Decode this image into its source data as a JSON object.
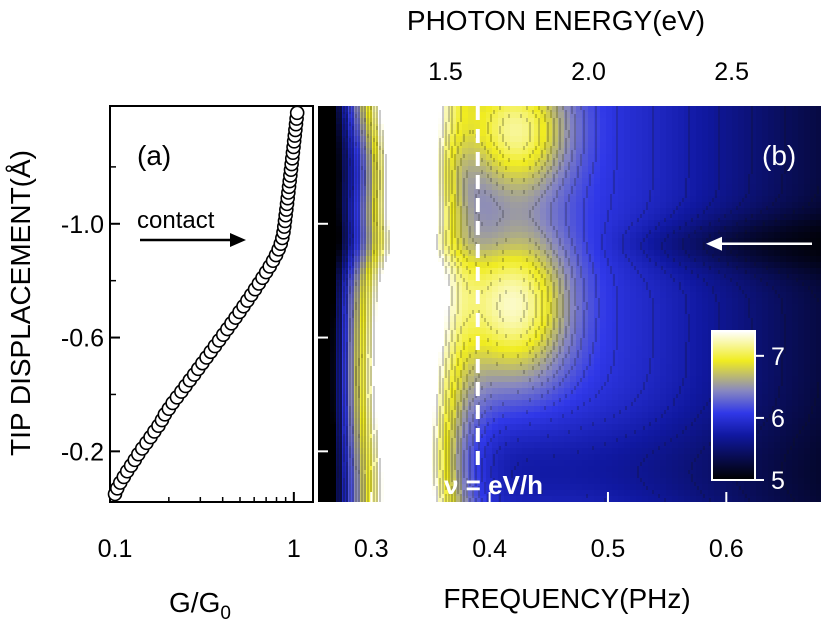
{
  "figure": {
    "top_axis_label": "PHOTON ENERGY(eV)",
    "y_axis_label": "TIP DISPLACEMENT(Å)",
    "panel_a_xlabel_main": "G/G",
    "panel_a_xlabel_sub": "0",
    "panel_b_xlabel": "FREQUENCY(PHz)",
    "panel_a_tag": "(a)",
    "panel_b_tag": "(b)",
    "contact_label": "contact",
    "dashed_line_label": "ν = eV/h",
    "colors": {
      "yellow": "#f2ee20",
      "blue": "#2b2fe6",
      "black": "#000000",
      "white": "#ffffff"
    }
  },
  "chart_data": [
    {
      "panel": "a",
      "type": "scatter",
      "title": "",
      "xlabel": "G/G0",
      "ylabel": "TIP DISPLACEMENT(Å)",
      "xscale": "log",
      "xlim": [
        0.1,
        1.2
      ],
      "ylim": [
        -0.05,
        -1.4
      ],
      "xticks": [
        0.1,
        1
      ],
      "xtick_labels": [
        "0.1",
        "1"
      ],
      "yticks": [
        -0.2,
        -0.6,
        -1.0
      ],
      "ytick_labels": [
        "-0.2",
        "-0.6",
        "-1.0"
      ],
      "points": [
        [
          0.1,
          -0.05
        ],
        [
          0.103,
          -0.07
        ],
        [
          0.107,
          -0.09
        ],
        [
          0.112,
          -0.11
        ],
        [
          0.117,
          -0.13
        ],
        [
          0.123,
          -0.15
        ],
        [
          0.129,
          -0.17
        ],
        [
          0.135,
          -0.19
        ],
        [
          0.142,
          -0.21
        ],
        [
          0.15,
          -0.23
        ],
        [
          0.158,
          -0.25
        ],
        [
          0.166,
          -0.27
        ],
        [
          0.175,
          -0.29
        ],
        [
          0.183,
          -0.31
        ],
        [
          0.19,
          -0.33
        ],
        [
          0.2,
          -0.35
        ],
        [
          0.21,
          -0.37
        ],
        [
          0.222,
          -0.39
        ],
        [
          0.235,
          -0.41
        ],
        [
          0.248,
          -0.43
        ],
        [
          0.262,
          -0.45
        ],
        [
          0.277,
          -0.47
        ],
        [
          0.292,
          -0.49
        ],
        [
          0.308,
          -0.51
        ],
        [
          0.325,
          -0.53
        ],
        [
          0.343,
          -0.55
        ],
        [
          0.362,
          -0.57
        ],
        [
          0.382,
          -0.59
        ],
        [
          0.403,
          -0.61
        ],
        [
          0.425,
          -0.63
        ],
        [
          0.448,
          -0.65
        ],
        [
          0.472,
          -0.67
        ],
        [
          0.497,
          -0.69
        ],
        [
          0.523,
          -0.71
        ],
        [
          0.55,
          -0.73
        ],
        [
          0.578,
          -0.75
        ],
        [
          0.607,
          -0.77
        ],
        [
          0.637,
          -0.79
        ],
        [
          0.668,
          -0.81
        ],
        [
          0.7,
          -0.83
        ],
        [
          0.733,
          -0.85
        ],
        [
          0.765,
          -0.87
        ],
        [
          0.795,
          -0.89
        ],
        [
          0.822,
          -0.91
        ],
        [
          0.845,
          -0.93
        ],
        [
          0.862,
          -0.95
        ],
        [
          0.875,
          -0.97
        ],
        [
          0.884,
          -0.99
        ],
        [
          0.892,
          -1.01
        ],
        [
          0.9,
          -1.03
        ],
        [
          0.908,
          -1.05
        ],
        [
          0.916,
          -1.07
        ],
        [
          0.924,
          -1.09
        ],
        [
          0.932,
          -1.11
        ],
        [
          0.94,
          -1.13
        ],
        [
          0.948,
          -1.15
        ],
        [
          0.956,
          -1.17
        ],
        [
          0.964,
          -1.19
        ],
        [
          0.972,
          -1.21
        ],
        [
          0.98,
          -1.23
        ],
        [
          0.988,
          -1.25
        ],
        [
          0.996,
          -1.27
        ],
        [
          1.004,
          -1.29
        ],
        [
          1.012,
          -1.31
        ],
        [
          1.02,
          -1.33
        ],
        [
          1.028,
          -1.35
        ],
        [
          1.036,
          -1.37
        ],
        [
          1.044,
          -1.39
        ]
      ],
      "annotation": {
        "text": "contact",
        "x": 0.9,
        "y": -0.93
      }
    },
    {
      "panel": "b",
      "type": "heatmap",
      "title": "",
      "xlabel": "FREQUENCY(PHz)",
      "top_xlabel": "PHOTON ENERGY(eV)",
      "ylabel": "TIP DISPLACEMENT(Å)",
      "xlim": [
        0.255,
        0.68
      ],
      "ylim": [
        -0.05,
        -1.4
      ],
      "xticks": [
        0.3,
        0.4,
        0.5,
        0.6
      ],
      "xtick_labels": [
        "0.3",
        "0.4",
        "0.5",
        "0.6"
      ],
      "top_ticks_eV": [
        1.5,
        2.0,
        2.5
      ],
      "top_tick_labels": [
        "1.5",
        "2.0",
        "2.5"
      ],
      "colorbar": {
        "min": 5,
        "max": 7.4,
        "ticks": [
          5,
          6,
          7
        ],
        "tick_labels": [
          "5",
          "6",
          "7"
        ]
      },
      "dashed_line": {
        "x": 0.39,
        "label": "ν = eV/h"
      },
      "arrow_y": -0.93,
      "features": [
        {
          "name": "main-peak",
          "x": 0.335,
          "value": 7.3,
          "width": 0.045
        },
        {
          "name": "secondary-peak",
          "x": 0.425,
          "value": 6.6,
          "width": 0.04
        },
        {
          "name": "blue-shoulder",
          "x": 0.55,
          "value": 5.9,
          "width": 0.06
        }
      ]
    }
  ]
}
